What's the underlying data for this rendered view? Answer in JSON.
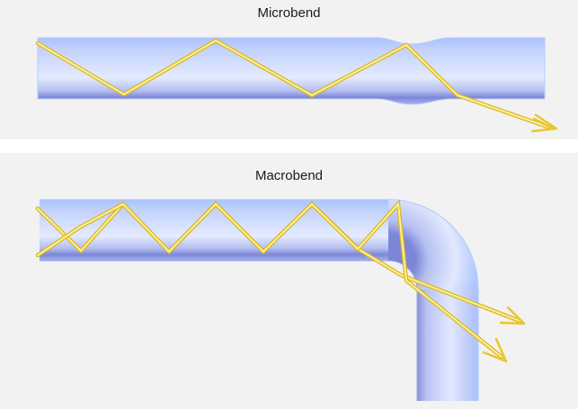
{
  "panels": [
    {
      "title": "Microbend"
    },
    {
      "title": "Macrobend"
    }
  ],
  "colors": {
    "background": "#f2f2f2",
    "separator": "#ffffff",
    "fiber_light": "#dfe8ff",
    "fiber_mid": "#b9c8f7",
    "fiber_dark": "#7c85d8",
    "fiber_edge": "#a9c2ff",
    "light_ray": "#f6e25a",
    "light_ray_outline": "#d9b820"
  }
}
